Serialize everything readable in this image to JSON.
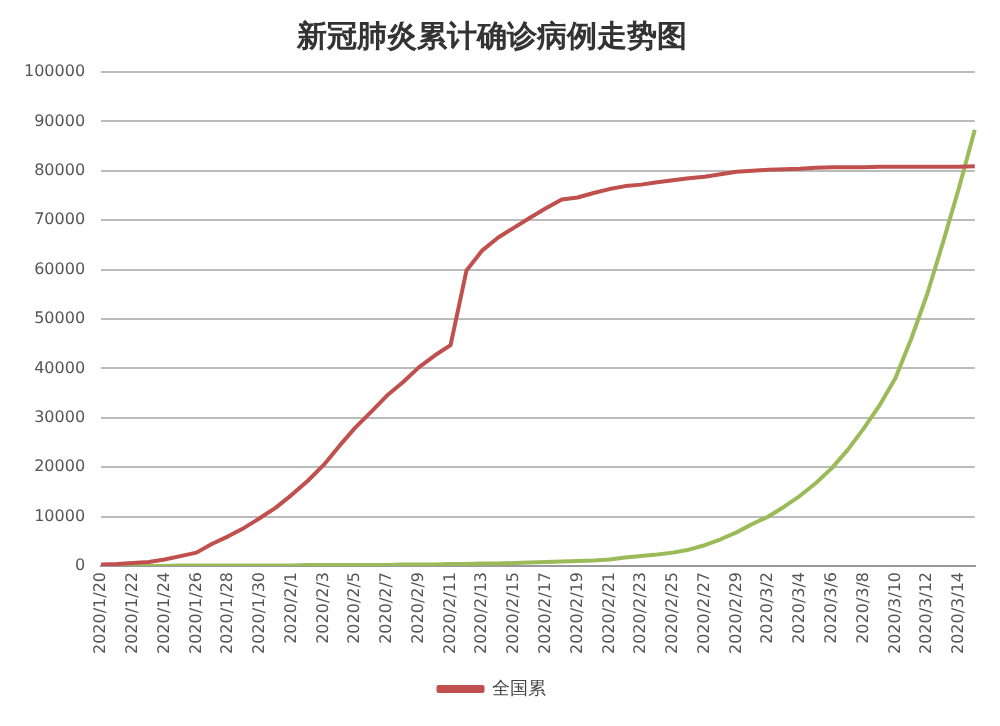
{
  "chart_data": {
    "type": "line",
    "title": "新冠肺炎累计确诊病例走势图",
    "categories": [
      "2020/1/20",
      null,
      "2020/1/22",
      null,
      "2020/1/24",
      null,
      "2020/1/26",
      null,
      "2020/1/28",
      null,
      "2020/1/30",
      null,
      "2020/2/1",
      null,
      "2020/2/3",
      null,
      "2020/2/5",
      null,
      "2020/2/7",
      null,
      "2020/2/9",
      null,
      "2020/2/11",
      null,
      "2020/2/13",
      null,
      "2020/2/15",
      null,
      "2020/2/17",
      null,
      "2020/2/19",
      null,
      "2020/2/21",
      null,
      "2020/2/23",
      null,
      "2020/2/25",
      null,
      "2020/2/27",
      null,
      "2020/2/29",
      null,
      "2020/3/2",
      null,
      "2020/3/4",
      null,
      "2020/3/6",
      null,
      "2020/3/8",
      null,
      "2020/3/10",
      null,
      "2020/3/12",
      null,
      "2020/3/14",
      null
    ],
    "series": [
      {
        "name": "全国累",
        "color": "#c0504d",
        "values": [
          300,
          400,
          600,
          800,
          1300,
          2000,
          2700,
          4500,
          6000,
          7700,
          9700,
          11800,
          14400,
          17200,
          20400,
          24300,
          28000,
          31200,
          34500,
          37200,
          40200,
          42600,
          44700,
          59800,
          63900,
          66500,
          68500,
          70500,
          72400,
          74200,
          74600,
          75500,
          76300,
          76900,
          77200,
          77700,
          78100,
          78500,
          78800,
          79300,
          79800,
          80000,
          80200,
          80300,
          80400,
          80600,
          80700,
          80700,
          80700,
          80800,
          80800,
          80800,
          80800,
          80800,
          80800,
          80900
        ]
      },
      {
        "color": "#9bbb59",
        "values": [
          0,
          0,
          0,
          0,
          0,
          100,
          100,
          100,
          100,
          100,
          100,
          100,
          100,
          200,
          200,
          200,
          200,
          200,
          200,
          300,
          300,
          300,
          400,
          400,
          500,
          500,
          600,
          700,
          800,
          900,
          1000,
          1100,
          1300,
          1700,
          2000,
          2300,
          2700,
          3300,
          4200,
          5400,
          6800,
          8500,
          10000,
          12000,
          14200,
          16800,
          19800,
          23500,
          27800,
          32500,
          38000,
          46000,
          55000,
          65500,
          76500,
          88300
        ]
      }
    ],
    "ylim": [
      0,
      100000
    ],
    "yticks": [
      0,
      10000,
      20000,
      30000,
      40000,
      50000,
      60000,
      70000,
      80000,
      90000,
      100000
    ],
    "grid": "y",
    "legend": "bottom",
    "marker": "none",
    "line_style": "solid"
  }
}
